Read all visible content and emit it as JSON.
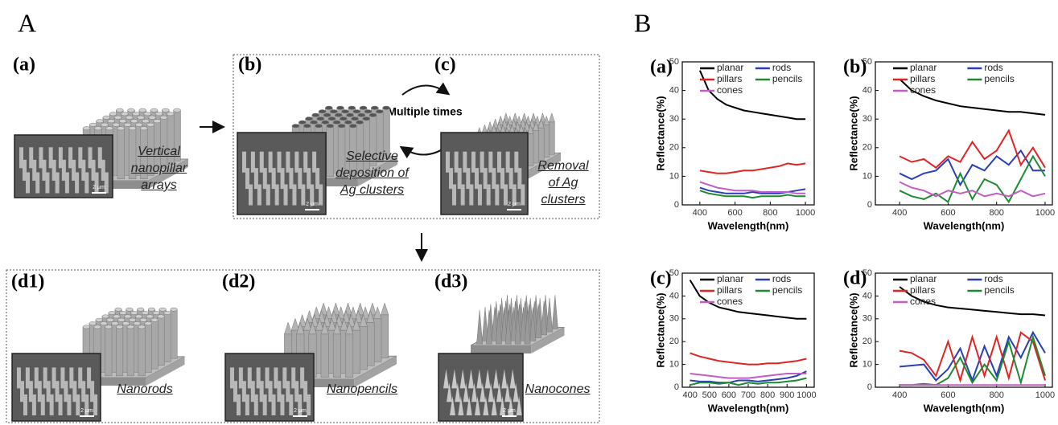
{
  "panel_a": {
    "heading": "A",
    "steps": [
      {
        "label": "(a)",
        "caption": "Vertical nanopillar arrays",
        "scale_bar": "2 μm"
      },
      {
        "label": "(b)",
        "caption": "Selective deposition of Ag clusters",
        "scale_bar": "2 μm"
      },
      {
        "label": "(c)",
        "caption": "Removal of Ag clusters",
        "scale_bar": "2 μm"
      }
    ],
    "cycle_note": "Multiple times",
    "results": [
      {
        "label": "(d1)",
        "caption": "Nanorods",
        "scale_bar": "2 μm"
      },
      {
        "label": "(d2)",
        "caption": "Nanopencils",
        "scale_bar": "2 μm"
      },
      {
        "label": "(d3)",
        "caption": "Nanocones",
        "scale_bar": "2 μm"
      }
    ]
  },
  "panel_b": {
    "heading": "B"
  },
  "chart_data": [
    {
      "type": "line",
      "label": "(a)",
      "x_label": "Wavelength(nm)",
      "y_label": "Reflectance(%)",
      "x": [
        400,
        450,
        500,
        550,
        600,
        650,
        700,
        750,
        800,
        850,
        900,
        950,
        1000
      ],
      "xlim": [
        300,
        1050
      ],
      "xticks": [
        400,
        600,
        800,
        1000
      ],
      "ylim": [
        0,
        50
      ],
      "yticks": [
        0,
        10,
        20,
        30,
        40,
        50
      ],
      "series": [
        {
          "name": "planar",
          "color": "#000000",
          "values": [
            47,
            40,
            37,
            35,
            34,
            33,
            32.5,
            32,
            31.5,
            31,
            30.5,
            30,
            30
          ]
        },
        {
          "name": "rods",
          "color": "#2a3fb5",
          "values": [
            6,
            5,
            4.5,
            4,
            4,
            4,
            4.5,
            4,
            4,
            4,
            4.5,
            5,
            5.5
          ]
        },
        {
          "name": "pillars",
          "color": "#e02424",
          "values": [
            12,
            11.5,
            11,
            11,
            11.5,
            12,
            12,
            12.5,
            13,
            13.5,
            14.5,
            14,
            14.5
          ]
        },
        {
          "name": "pencils",
          "color": "#1e8a32",
          "values": [
            5,
            4,
            3.5,
            3,
            3,
            3,
            2.5,
            3,
            3,
            3,
            3.5,
            3,
            3
          ]
        },
        {
          "name": "cones",
          "color": "#c25ec2",
          "values": [
            8,
            7,
            6,
            5.5,
            5,
            5,
            5,
            4.5,
            4.5,
            4.5,
            4.5,
            4,
            4
          ]
        }
      ]
    },
    {
      "type": "line",
      "label": "(b)",
      "x_label": "Wavelength(nm)",
      "y_label": "Reflectance(%)",
      "x": [
        400,
        450,
        500,
        550,
        600,
        650,
        700,
        750,
        800,
        850,
        900,
        950,
        1000
      ],
      "xlim": [
        300,
        1030
      ],
      "xticks": [
        400,
        600,
        800,
        1000
      ],
      "ylim": [
        0,
        50
      ],
      "yticks": [
        0,
        10,
        20,
        30,
        40,
        50
      ],
      "series": [
        {
          "name": "planar",
          "color": "#000000",
          "values": [
            44,
            40,
            38,
            36.5,
            35.5,
            34.5,
            34,
            33.5,
            33,
            32.5,
            32.5,
            32,
            31.5
          ]
        },
        {
          "name": "rods",
          "color": "#2a3fb5",
          "values": [
            11,
            9,
            11,
            12,
            16,
            7,
            14,
            12,
            17,
            14,
            19,
            12,
            12
          ]
        },
        {
          "name": "pillars",
          "color": "#e02424",
          "values": [
            17,
            15,
            16,
            13,
            17,
            15,
            22,
            16,
            19,
            26,
            14,
            20,
            13
          ]
        },
        {
          "name": "pencils",
          "color": "#1e8a32",
          "values": [
            5,
            3,
            2,
            4,
            1,
            11,
            2,
            9,
            7,
            1,
            9,
            17,
            10
          ]
        },
        {
          "name": "cones",
          "color": "#c25ec2",
          "values": [
            8,
            6,
            5,
            3,
            5,
            4,
            5,
            3,
            4,
            3,
            5,
            3,
            4
          ]
        }
      ]
    },
    {
      "type": "line",
      "label": "(c)",
      "x_label": "Wavelength(nm)",
      "y_label": "Reflectance(%)",
      "x": [
        400,
        450,
        500,
        550,
        600,
        650,
        700,
        750,
        800,
        850,
        900,
        950,
        1000
      ],
      "xlim": [
        360,
        1040
      ],
      "xticks": [
        400,
        500,
        600,
        700,
        800,
        900,
        1000
      ],
      "ylim": [
        0,
        50
      ],
      "yticks": [
        0,
        10,
        20,
        30,
        40,
        50
      ],
      "series": [
        {
          "name": "planar",
          "color": "#000000",
          "values": [
            47,
            40,
            37,
            35,
            34,
            33,
            32.5,
            32,
            31.5,
            31,
            30.5,
            30,
            30
          ]
        },
        {
          "name": "rods",
          "color": "#2a3fb5",
          "values": [
            3,
            2.5,
            2.5,
            2,
            2,
            3,
            3,
            2.5,
            3,
            3.5,
            4,
            5,
            7
          ]
        },
        {
          "name": "pillars",
          "color": "#e02424",
          "values": [
            15,
            13.5,
            12.5,
            11.5,
            11,
            10.5,
            10,
            10,
            10.5,
            10.5,
            11,
            11.5,
            12.5
          ]
        },
        {
          "name": "pencils",
          "color": "#1e8a32",
          "values": [
            1,
            2,
            2,
            1.5,
            2,
            1,
            2,
            1.5,
            2,
            2,
            2.5,
            3,
            4
          ]
        },
        {
          "name": "cones",
          "color": "#c25ec2",
          "values": [
            6,
            5.5,
            5,
            4.5,
            4,
            4,
            4,
            4.5,
            5,
            5.5,
            6,
            6,
            6
          ]
        }
      ]
    },
    {
      "type": "line",
      "label": "(d)",
      "x_label": "Wavelength(nm)",
      "y_label": "Reflectance(%)",
      "x": [
        400,
        450,
        500,
        550,
        600,
        650,
        700,
        750,
        800,
        850,
        900,
        950,
        1000
      ],
      "xlim": [
        300,
        1030
      ],
      "xticks": [
        400,
        600,
        800,
        1000
      ],
      "ylim": [
        0,
        50
      ],
      "yticks": [
        0,
        10,
        20,
        30,
        40,
        50
      ],
      "series": [
        {
          "name": "planar",
          "color": "#000000",
          "values": [
            44,
            40,
            37.5,
            36,
            35,
            34.5,
            34,
            33.5,
            33,
            32.5,
            32,
            32,
            31.5
          ]
        },
        {
          "name": "rods",
          "color": "#2a3fb5",
          "values": [
            9,
            9.5,
            10,
            3,
            8,
            17,
            3,
            18,
            5,
            22,
            13,
            24,
            15
          ]
        },
        {
          "name": "pillars",
          "color": "#e02424",
          "values": [
            16,
            15,
            12,
            5,
            20,
            3,
            22,
            5,
            22,
            4,
            24,
            20,
            3
          ]
        },
        {
          "name": "pencils",
          "color": "#1e8a32",
          "values": [
            1,
            1,
            1.5,
            1,
            4,
            13,
            2,
            10,
            3,
            20,
            2,
            22,
            5
          ]
        },
        {
          "name": "cones",
          "color": "#c25ec2",
          "values": [
            1,
            1,
            1,
            1,
            1,
            1,
            1,
            1,
            1,
            1,
            1,
            1,
            1
          ]
        }
      ]
    }
  ]
}
